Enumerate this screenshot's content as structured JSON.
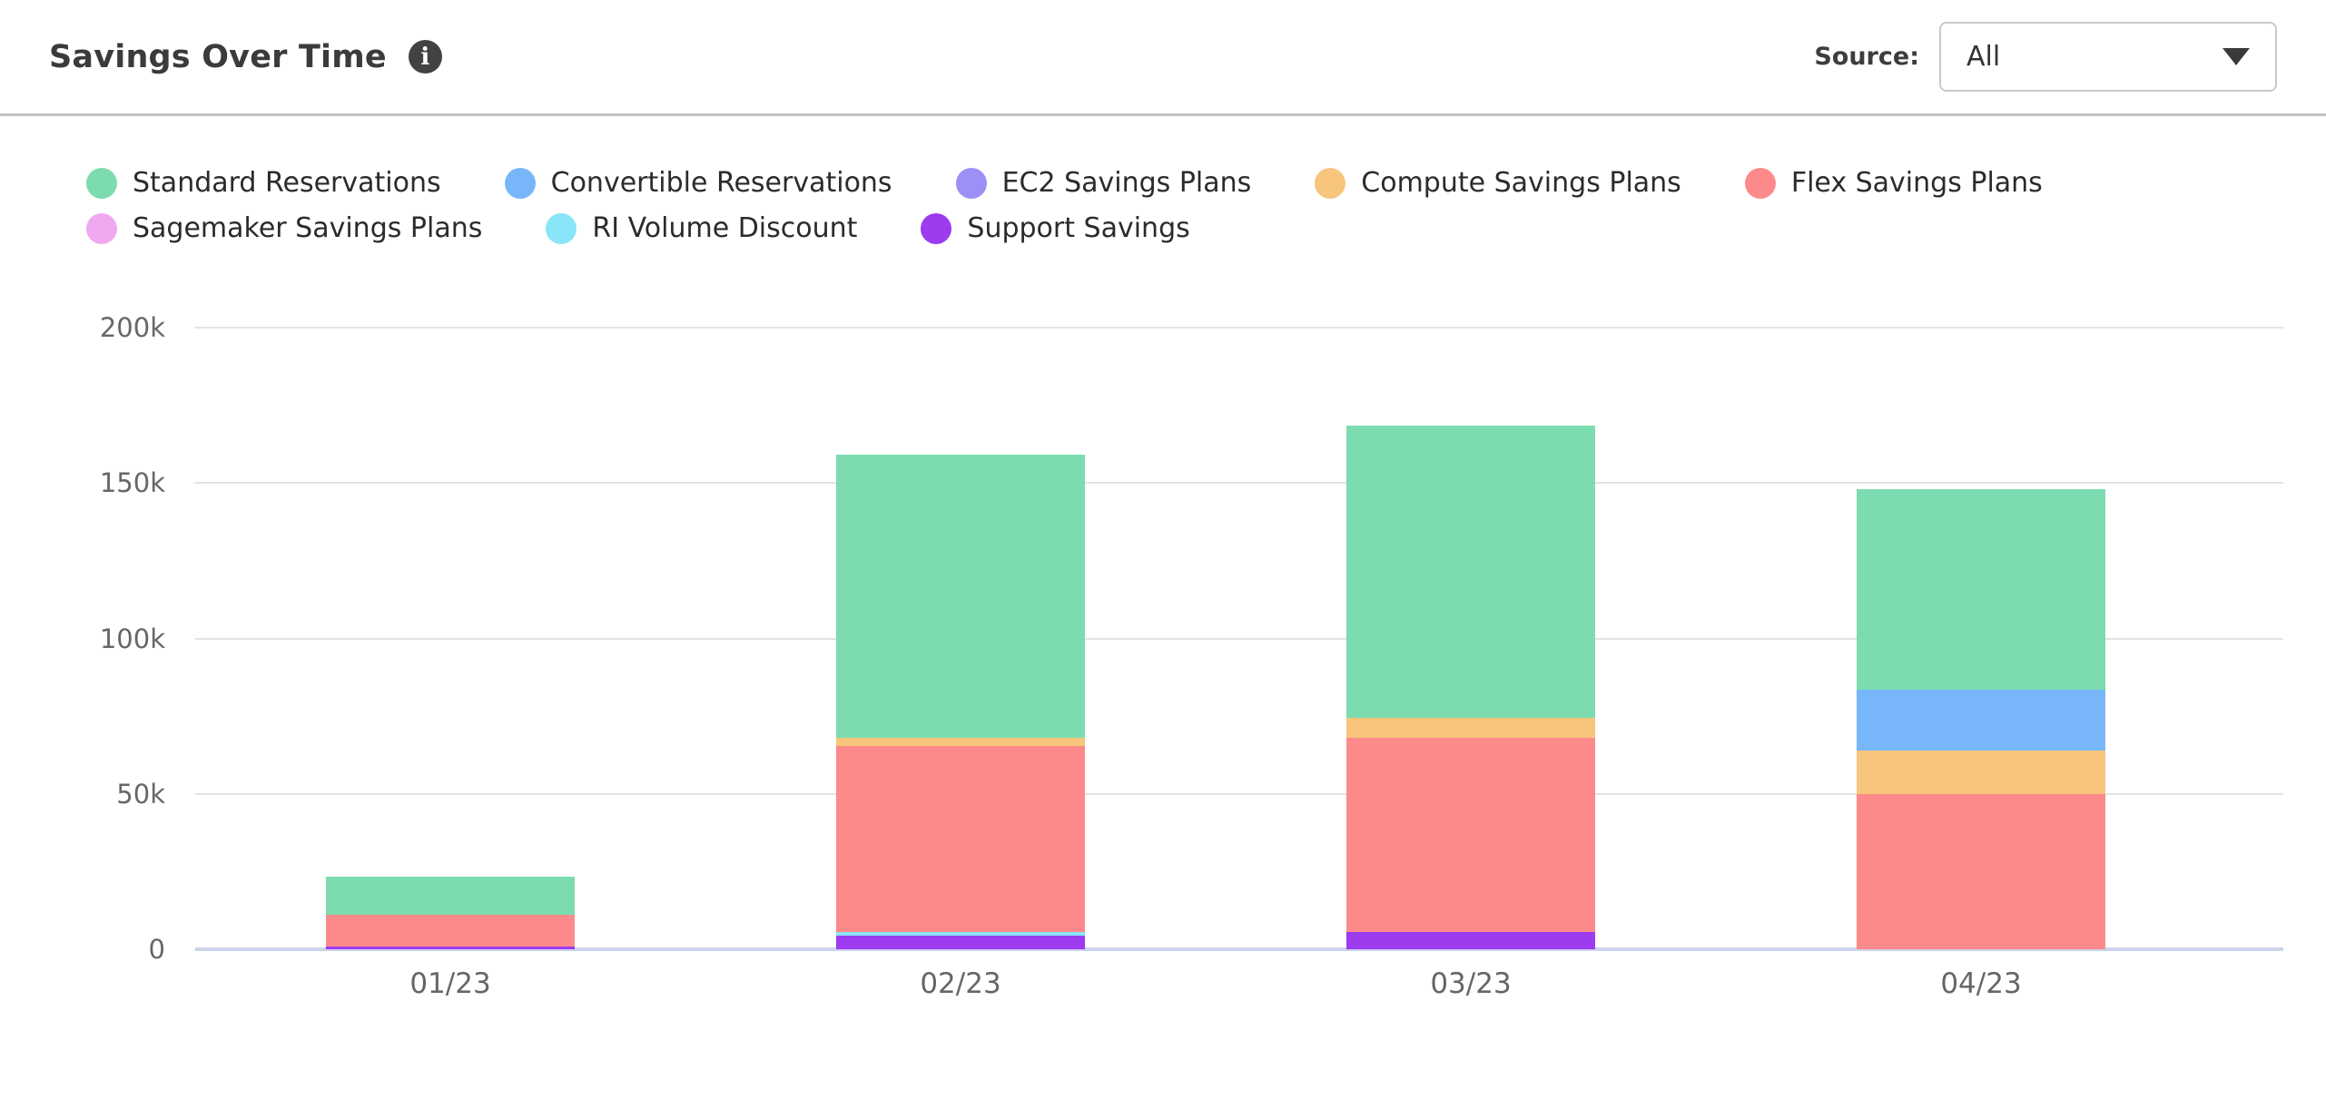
{
  "header": {
    "title": "Savings Over Time",
    "info_icon": "i",
    "source_label": "Source:",
    "source_value": "All"
  },
  "chart_data": {
    "type": "bar",
    "stacked": true,
    "title": "Savings Over Time",
    "categories": [
      "01/23",
      "02/23",
      "03/23",
      "04/23"
    ],
    "values_unit": "thousands",
    "y_axis_max": 200,
    "y_ticks": [
      {
        "label": "200k",
        "value": 200
      },
      {
        "label": "150k",
        "value": 150
      },
      {
        "label": "100k",
        "value": 100
      },
      {
        "label": "50k",
        "value": 50
      },
      {
        "label": "0",
        "value": 0
      }
    ],
    "grid": "horizontal",
    "legend_position": "top-left",
    "series": [
      {
        "name": "Standard Reservations",
        "color": "#7CDCAF",
        "legend_row": 0,
        "values": [
          12.5,
          91,
          94,
          64.5
        ]
      },
      {
        "name": "Convertible Reservations",
        "color": "#77B7F9",
        "legend_row": 0,
        "values": [
          0,
          0,
          0,
          19.5
        ]
      },
      {
        "name": "EC2 Savings Plans",
        "color": "#9C8FF5",
        "legend_row": 0,
        "values": [
          0,
          0,
          0,
          0
        ]
      },
      {
        "name": "Compute Savings Plans",
        "color": "#F8C57D",
        "legend_row": 0,
        "values": [
          0,
          2.5,
          6.5,
          14
        ]
      },
      {
        "name": "Flex Savings Plans",
        "color": "#FD8A8A",
        "legend_row": 0,
        "values": [
          10,
          60,
          62.5,
          50
        ]
      },
      {
        "name": "Sagemaker Savings Plans",
        "color": "#F0A9F0",
        "legend_row": 1,
        "values": [
          0,
          0,
          0,
          0
        ]
      },
      {
        "name": "RI Volume Discount",
        "color": "#8AE5F8",
        "legend_row": 1,
        "values": [
          0,
          1,
          0,
          0
        ]
      },
      {
        "name": "Support Savings",
        "color": "#9D3BEF",
        "legend_row": 1,
        "values": [
          1,
          4.5,
          5.5,
          0
        ]
      }
    ],
    "stack_order": "bottom-to-top is reverse of legend order",
    "totals": [
      23.5,
      159,
      168.5,
      148
    ],
    "axis_color": "#ccd4ec",
    "gridline_color": "#e3e3e3"
  }
}
